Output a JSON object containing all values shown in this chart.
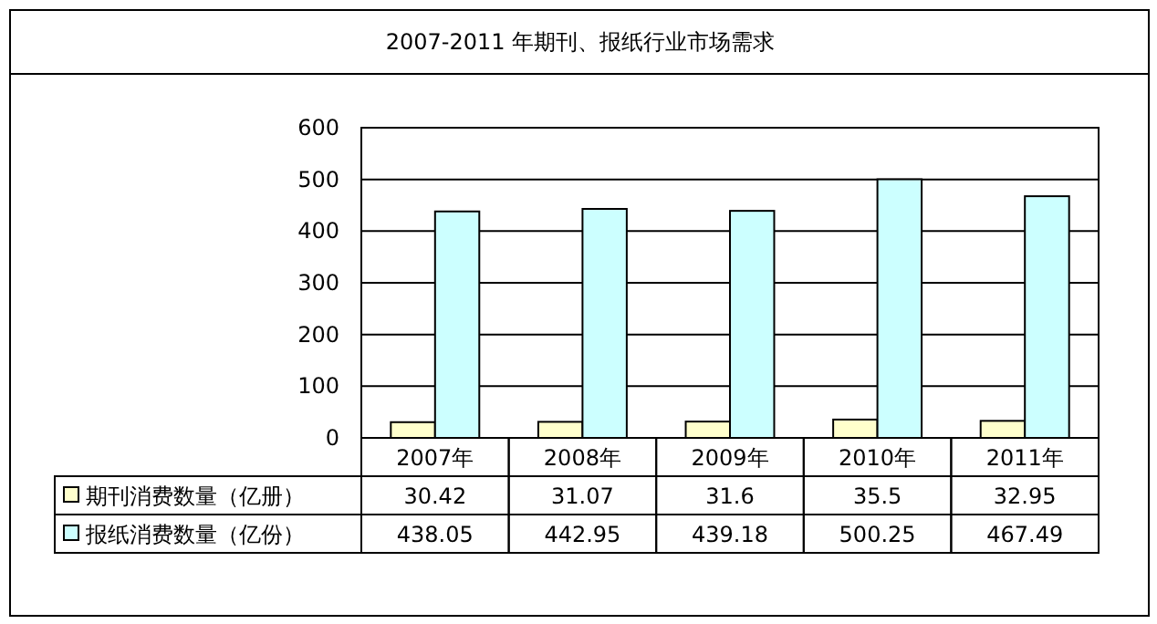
{
  "chart_data": {
    "type": "bar",
    "title": "2007-2011 年期刊、报纸行业市场需求",
    "categories": [
      "2007年",
      "2008年",
      "2009年",
      "2010年",
      "2011年"
    ],
    "series": [
      {
        "name": "期刊消费数量（亿册）",
        "color": "#ffffcc",
        "values": [
          30.42,
          31.07,
          31.6,
          35.5,
          32.95
        ]
      },
      {
        "name": "报纸消费数量（亿份）",
        "color": "#ccffff",
        "values": [
          438.05,
          442.95,
          439.18,
          500.25,
          467.49
        ]
      }
    ],
    "ylim": [
      0,
      600
    ],
    "yticks": [
      0,
      100,
      200,
      300,
      400,
      500,
      600
    ],
    "grid": "y",
    "data_labels": true,
    "legend": "bottom left"
  }
}
